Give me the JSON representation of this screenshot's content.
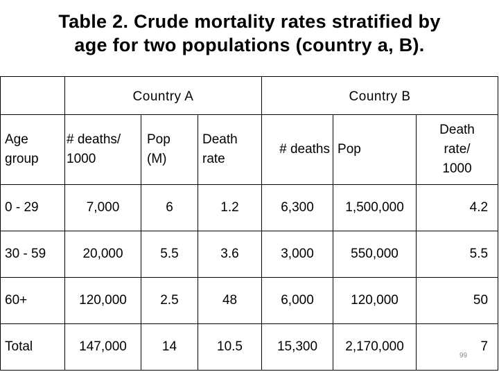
{
  "title": {
    "line1": "Table 2. Crude mortality rates stratified by",
    "line2": "age for two populations (country a, B)."
  },
  "table": {
    "country_a_label": "Country A",
    "country_b_label": "Country B",
    "headers": {
      "age_group": [
        "Age",
        "group"
      ],
      "a_deaths": [
        "# deaths/",
        "1000"
      ],
      "a_pop": [
        "Pop",
        "(M)"
      ],
      "a_rate": [
        "Death",
        "rate"
      ],
      "b_deaths": "# deaths",
      "b_pop": "Pop",
      "b_rate": [
        "Death",
        "rate/",
        "1000"
      ]
    },
    "rows": [
      {
        "age": "0 - 29",
        "a_deaths": "7,000",
        "a_pop": "6",
        "a_rate": "1.2",
        "b_deaths": "6,300",
        "b_pop": "1,500,000",
        "b_rate": "4.2"
      },
      {
        "age": "30 - 59",
        "a_deaths": "20,000",
        "a_pop": "5.5",
        "a_rate": "3.6",
        "b_deaths": "3,000",
        "b_pop": "550,000",
        "b_rate": "5.5"
      },
      {
        "age": "60+",
        "a_deaths": "120,000",
        "a_pop": "2.5",
        "a_rate": "48",
        "b_deaths": "6,000",
        "b_pop": "120,000",
        "b_rate": "50"
      },
      {
        "age": "Total",
        "a_deaths": "147,000",
        "a_pop": "14",
        "a_rate": "10.5",
        "b_deaths": "15,300",
        "b_pop": "2,170,000",
        "b_rate": "7"
      }
    ]
  },
  "page_number": "99"
}
